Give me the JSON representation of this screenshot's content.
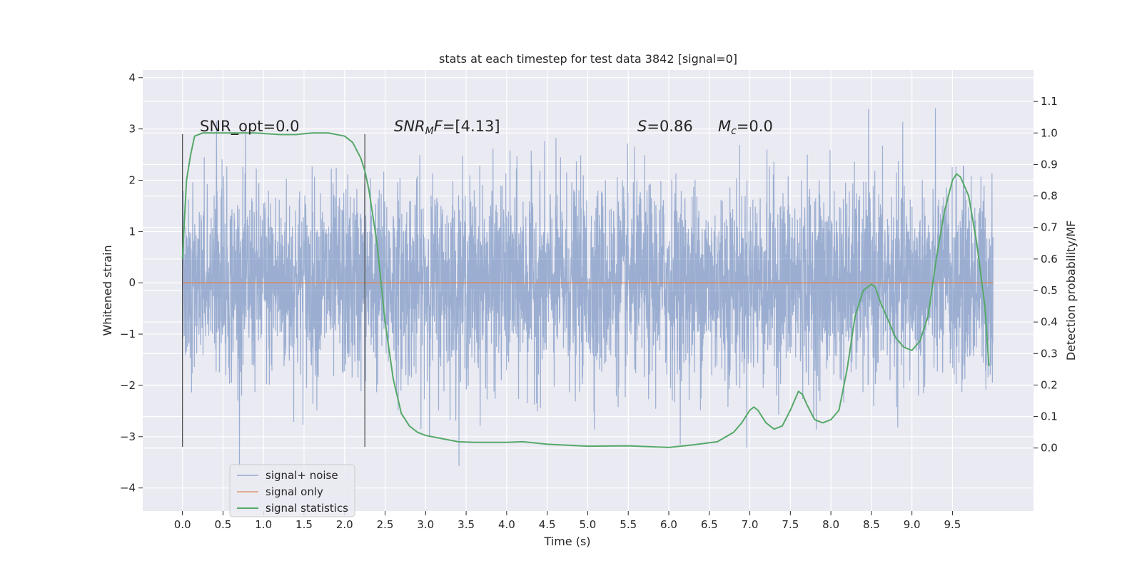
{
  "chart_data": {
    "type": "line",
    "title": "stats at each timestep for test data 3842 [signal=0]",
    "xlabel": "Time (s)",
    "ylabel": "Whitened strain",
    "ylabel_right": "Detection probability/MF",
    "xlim": [
      -0.49,
      10.5
    ],
    "ylim": [
      -4.45,
      4.15
    ],
    "ylim_right": [
      -0.2,
      1.2
    ],
    "x_ticks": [
      "0.0",
      "0.5",
      "1.0",
      "1.5",
      "2.0",
      "2.5",
      "3.0",
      "3.5",
      "4.0",
      "4.5",
      "5.0",
      "5.5",
      "6.0",
      "6.5",
      "7.0",
      "7.5",
      "8.0",
      "8.5",
      "9.0",
      "9.5"
    ],
    "y_ticks": [
      "−4",
      "−3",
      "−2",
      "−1",
      "0",
      "1",
      "2",
      "3",
      "4"
    ],
    "y_ticks_right": [
      "0.0",
      "0.1",
      "0.2",
      "0.3",
      "0.4",
      "0.5",
      "0.6",
      "0.7",
      "0.8",
      "0.9",
      "1.0",
      "1.1"
    ],
    "grid": true,
    "legend_position": "lower-left",
    "annotations": {
      "snr_opt": "SNR_opt=0.0",
      "snr_mf": "=[4.13]",
      "s_stat": "=0.86",
      "mc": "=0.0"
    },
    "vertical_markers": [
      {
        "x": 0.0,
        "y_range": [
          -3.2,
          2.9
        ]
      },
      {
        "x": 2.25,
        "y_range": [
          -3.2,
          2.9
        ]
      }
    ],
    "series": [
      {
        "name": "signal+ noise",
        "color": "#4c72b0",
        "x_range": [
          0.0,
          10.0
        ],
        "typical_band": [
          -1.7,
          1.9
        ],
        "peak_band": [
          -3.6,
          3.75
        ]
      },
      {
        "name": "signal only",
        "color": "#dd8452",
        "x": [
          0.0,
          10.0
        ],
        "values": [
          0.0,
          0.0
        ]
      },
      {
        "name": "signal statistics",
        "color": "#55a868",
        "axis": "right",
        "x": [
          0.0,
          0.05,
          0.1,
          0.15,
          0.25,
          0.4,
          0.6,
          0.9,
          1.2,
          1.4,
          1.6,
          1.8,
          2.0,
          2.1,
          2.2,
          2.25,
          2.3,
          2.4,
          2.5,
          2.6,
          2.7,
          2.8,
          2.9,
          3.0,
          3.2,
          3.4,
          3.6,
          3.8,
          4.0,
          4.2,
          4.5,
          5.0,
          5.5,
          6.0,
          6.3,
          6.6,
          6.8,
          6.9,
          7.0,
          7.05,
          7.1,
          7.2,
          7.3,
          7.4,
          7.5,
          7.6,
          7.65,
          7.7,
          7.8,
          7.9,
          8.0,
          8.1,
          8.2,
          8.3,
          8.4,
          8.5,
          8.55,
          8.6,
          8.7,
          8.8,
          8.9,
          9.0,
          9.1,
          9.2,
          9.3,
          9.4,
          9.5,
          9.55,
          9.6,
          9.7,
          9.8,
          9.9,
          9.95
        ],
        "values": [
          0.6,
          0.85,
          0.93,
          0.99,
          1.0,
          1.0,
          1.0,
          1.0,
          0.995,
          0.995,
          1.0,
          1.0,
          0.99,
          0.97,
          0.92,
          0.88,
          0.82,
          0.65,
          0.4,
          0.22,
          0.11,
          0.07,
          0.05,
          0.04,
          0.03,
          0.02,
          0.018,
          0.018,
          0.018,
          0.02,
          0.012,
          0.006,
          0.007,
          0.002,
          0.01,
          0.02,
          0.05,
          0.08,
          0.12,
          0.13,
          0.12,
          0.08,
          0.06,
          0.07,
          0.12,
          0.18,
          0.17,
          0.14,
          0.09,
          0.08,
          0.09,
          0.12,
          0.25,
          0.42,
          0.5,
          0.52,
          0.51,
          0.47,
          0.41,
          0.35,
          0.32,
          0.31,
          0.34,
          0.42,
          0.6,
          0.75,
          0.85,
          0.87,
          0.86,
          0.8,
          0.65,
          0.45,
          0.26
        ]
      }
    ]
  }
}
